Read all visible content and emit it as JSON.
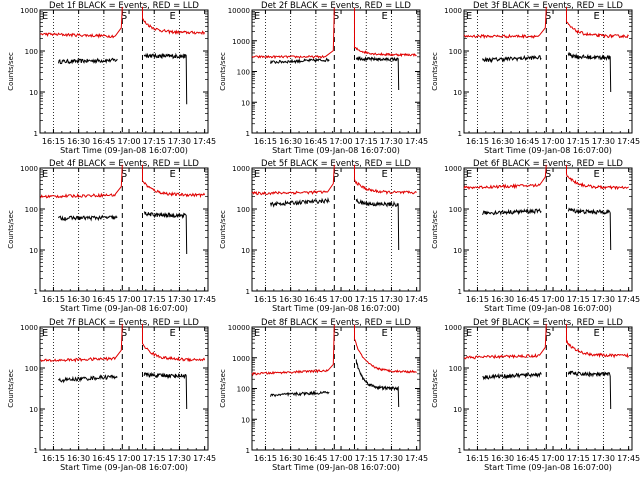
{
  "colors": {
    "events": "#000000",
    "lld": "#e00000",
    "axis": "#000000"
  },
  "shared": {
    "xlabel": "Start Time (09-Jan-08 16:07:00)",
    "ylabel": "Counts/sec",
    "x_tick_labels": [
      "16:15",
      "16:30",
      "16:45",
      "17:00",
      "17:15",
      "17:30",
      "17:45"
    ],
    "x_dotted_times": [
      "16:15",
      "16:30",
      "16:45",
      "17:15",
      "17:30"
    ],
    "vlines_dashed": [
      "16:56",
      "17:08"
    ],
    "markers": [
      {
        "label": "E",
        "time": "16:10"
      },
      {
        "label": "S",
        "time": "16:57"
      },
      {
        "label": "E",
        "time": "17:26"
      }
    ],
    "xlim": [
      "16:07",
      "17:47"
    ],
    "ylog": true
  },
  "chart_data": [
    {
      "type": "line",
      "title": "Det 1f BLACK = Events, RED = LLD",
      "ylim": [
        1,
        1000
      ],
      "y_tick_labels": [
        "1",
        "10",
        "100",
        "1000"
      ],
      "series": [
        {
          "name": "Events",
          "color": "black",
          "segments": [
            {
              "x": [
                "16:18",
                "16:53"
              ],
              "y": [
                55,
                60
              ]
            },
            {
              "x": [
                "17:09",
                "17:34"
              ],
              "y": [
                80,
                75
              ],
              "drop_to": 5
            }
          ]
        },
        {
          "name": "LLD",
          "color": "red",
          "segments": [
            {
              "x": [
                "16:07",
                "16:52"
              ],
              "y": [
                260,
                230
              ],
              "peak_x": "16:56",
              "peak_y": 1200
            },
            {
              "x": [
                "17:08",
                "17:45"
              ],
              "y": [
                600,
                280
              ]
            }
          ]
        }
      ]
    },
    {
      "type": "line",
      "title": "Det 2f BLACK = Events, RED = LLD",
      "ylim": [
        1,
        10000
      ],
      "y_tick_labels": [
        "1",
        "10",
        "100",
        "1000",
        "10000"
      ],
      "series": [
        {
          "name": "Events",
          "color": "black",
          "segments": [
            {
              "x": [
                "16:18",
                "16:53"
              ],
              "y": [
                200,
                240
              ]
            },
            {
              "x": [
                "17:09",
                "17:34"
              ],
              "y": [
                280,
                250
              ],
              "drop_to": 25
            }
          ]
        },
        {
          "name": "LLD",
          "color": "red",
          "segments": [
            {
              "x": [
                "16:07",
                "16:51"
              ],
              "y": [
                300,
                300
              ],
              "peak_x": "16:56",
              "peak_y": 12000
            },
            {
              "x": [
                "17:08",
                "17:45"
              ],
              "y": [
                600,
                350
              ]
            }
          ]
        }
      ]
    },
    {
      "type": "line",
      "title": "Det 3f BLACK = Events, RED = LLD",
      "ylim": [
        1,
        1000
      ],
      "y_tick_labels": [
        "1",
        "10",
        "100",
        "1000"
      ],
      "series": [
        {
          "name": "Events",
          "color": "black",
          "segments": [
            {
              "x": [
                "16:18",
                "16:53"
              ],
              "y": [
                60,
                70
              ]
            },
            {
              "x": [
                "17:09",
                "17:34"
              ],
              "y": [
                85,
                70
              ],
              "drop_to": 10
            }
          ]
        },
        {
          "name": "LLD",
          "color": "red",
          "segments": [
            {
              "x": [
                "16:07",
                "16:52"
              ],
              "y": [
                230,
                230
              ],
              "peak_x": "16:56",
              "peak_y": 1200
            },
            {
              "x": [
                "17:08",
                "17:45"
              ],
              "y": [
                500,
                230
              ]
            }
          ]
        }
      ]
    },
    {
      "type": "line",
      "title": "Det 4f BLACK = Events, RED = LLD",
      "ylim": [
        1,
        1000
      ],
      "y_tick_labels": [
        "1",
        "10",
        "100",
        "1000"
      ],
      "series": [
        {
          "name": "Events",
          "color": "black",
          "segments": [
            {
              "x": [
                "16:18",
                "16:53"
              ],
              "y": [
                60,
                62
              ]
            },
            {
              "x": [
                "17:09",
                "17:34"
              ],
              "y": [
                80,
                70
              ],
              "drop_to": 8
            }
          ]
        },
        {
          "name": "LLD",
          "color": "red",
          "segments": [
            {
              "x": [
                "16:07",
                "16:52"
              ],
              "y": [
                200,
                220
              ],
              "peak_x": "16:56",
              "peak_y": 1200
            },
            {
              "x": [
                "17:08",
                "17:45"
              ],
              "y": [
                500,
                220
              ]
            }
          ]
        }
      ]
    },
    {
      "type": "line",
      "title": "Det 5f BLACK = Events, RED = LLD",
      "ylim": [
        1,
        1000
      ],
      "y_tick_labels": [
        "1",
        "10",
        "100",
        "1000"
      ],
      "series": [
        {
          "name": "Events",
          "color": "black",
          "segments": [
            {
              "x": [
                "16:18",
                "16:53"
              ],
              "y": [
                130,
                160
              ]
            },
            {
              "x": [
                "17:09",
                "17:34"
              ],
              "y": [
                160,
                130
              ],
              "drop_to": 10
            }
          ]
        },
        {
          "name": "LLD",
          "color": "red",
          "segments": [
            {
              "x": [
                "16:07",
                "16:52"
              ],
              "y": [
                240,
                260
              ],
              "peak_x": "16:56",
              "peak_y": 1200
            },
            {
              "x": [
                "17:08",
                "17:45"
              ],
              "y": [
                500,
                250
              ]
            }
          ]
        }
      ]
    },
    {
      "type": "line",
      "title": "Det 6f BLACK = Events, RED = LLD",
      "ylim": [
        1,
        1000
      ],
      "y_tick_labels": [
        "1",
        "10",
        "100",
        "1000"
      ],
      "series": [
        {
          "name": "Events",
          "color": "black",
          "segments": [
            {
              "x": [
                "16:18",
                "16:53"
              ],
              "y": [
                80,
                90
              ]
            },
            {
              "x": [
                "17:09",
                "17:34"
              ],
              "y": [
                100,
                85
              ],
              "drop_to": 10
            }
          ]
        },
        {
          "name": "LLD",
          "color": "red",
          "segments": [
            {
              "x": [
                "16:07",
                "16:52"
              ],
              "y": [
                330,
                380
              ],
              "peak_x": "16:56",
              "peak_y": 1200
            },
            {
              "x": [
                "17:08",
                "17:45"
              ],
              "y": [
                700,
                330
              ]
            }
          ]
        }
      ]
    },
    {
      "type": "line",
      "title": "Det 7f BLACK = Events, RED = LLD",
      "ylim": [
        1,
        1000
      ],
      "y_tick_labels": [
        "1",
        "10",
        "100",
        "1000"
      ],
      "series": [
        {
          "name": "Events",
          "color": "black",
          "segments": [
            {
              "x": [
                "16:18",
                "16:53"
              ],
              "y": [
                50,
                62
              ]
            },
            {
              "x": [
                "17:09",
                "17:34"
              ],
              "y": [
                70,
                65
              ],
              "drop_to": 10
            }
          ]
        },
        {
          "name": "LLD",
          "color": "red",
          "segments": [
            {
              "x": [
                "16:07",
                "16:52"
              ],
              "y": [
                150,
                170
              ],
              "peak_x": "16:56",
              "peak_y": 1200
            },
            {
              "x": [
                "17:08",
                "17:45"
              ],
              "y": [
                400,
                160
              ]
            }
          ]
        }
      ]
    },
    {
      "type": "line",
      "title": "Det 8f BLACK = Events, RED = LLD",
      "ylim": [
        1,
        10000
      ],
      "y_tick_labels": [
        "1",
        "10",
        "100",
        "1000",
        "10000"
      ],
      "series": [
        {
          "name": "Events",
          "color": "black",
          "segments": [
            {
              "x": [
                "16:18",
                "16:53"
              ],
              "y": [
                60,
                75
              ]
            },
            {
              "x": [
                "17:09",
                "17:34"
              ],
              "y": [
                800,
                100
              ],
              "drop_to": 25
            }
          ]
        },
        {
          "name": "LLD",
          "color": "red",
          "segments": [
            {
              "x": [
                "16:07",
                "16:52"
              ],
              "y": [
                300,
                380
              ],
              "peak_x": "16:56",
              "peak_y": 12000
            },
            {
              "x": [
                "17:08",
                "17:45"
              ],
              "y": [
                4000,
                350
              ]
            }
          ]
        }
      ]
    },
    {
      "type": "line",
      "title": "Det 9f BLACK = Events, RED = LLD",
      "ylim": [
        1,
        1000
      ],
      "y_tick_labels": [
        "1",
        "10",
        "100",
        "1000"
      ],
      "series": [
        {
          "name": "Events",
          "color": "black",
          "segments": [
            {
              "x": [
                "16:18",
                "16:53"
              ],
              "y": [
                60,
                70
              ]
            },
            {
              "x": [
                "17:09",
                "17:34"
              ],
              "y": [
                80,
                70
              ],
              "drop_to": 10
            }
          ]
        },
        {
          "name": "LLD",
          "color": "red",
          "segments": [
            {
              "x": [
                "16:07",
                "16:52"
              ],
              "y": [
                180,
                200
              ],
              "peak_x": "16:56",
              "peak_y": 1200
            },
            {
              "x": [
                "17:08",
                "17:45"
              ],
              "y": [
                450,
                200
              ]
            }
          ]
        }
      ]
    }
  ]
}
